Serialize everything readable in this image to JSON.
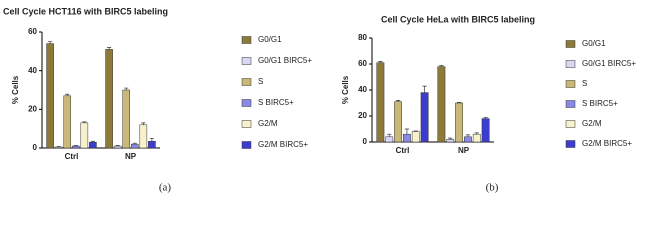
{
  "chart_data": [
    {
      "type": "bar",
      "title": "Cell Cycle HCT116 with BIRC5 labeling",
      "y_label": "% Cells",
      "panel_label": "(a)",
      "categories": [
        "Ctrl",
        "NP"
      ],
      "ylim": [
        0,
        60
      ],
      "yticks": [
        0,
        20,
        40,
        60
      ],
      "series": [
        {
          "name": "G0/G1",
          "color": "#8c7a3a",
          "values": [
            54,
            51
          ],
          "errors": [
            1,
            1
          ]
        },
        {
          "name": "G0/G1 BIRC5+",
          "color": "#d6d6f5",
          "values": [
            0.5,
            1
          ],
          "errors": [
            0.3,
            0.3
          ]
        },
        {
          "name": "S",
          "color": "#c9b877",
          "values": [
            27,
            30
          ],
          "errors": [
            0.8,
            1
          ]
        },
        {
          "name": "S BIRC5+",
          "color": "#8a8ae6",
          "values": [
            1,
            2
          ],
          "errors": [
            0.3,
            0.5
          ]
        },
        {
          "name": "G2/M",
          "color": "#f7f2cc",
          "values": [
            13,
            12
          ],
          "errors": [
            0.5,
            1
          ]
        },
        {
          "name": "G2/M BIRC5+",
          "color": "#3c3ccf",
          "values": [
            3,
            3.5
          ],
          "errors": [
            0.5,
            1.5
          ]
        }
      ]
    },
    {
      "type": "bar",
      "title": "Cell Cycle HeLa with BIRC5 labeling",
      "y_label": "% Cells",
      "panel_label": "(b)",
      "categories": [
        "Ctrl",
        "NP"
      ],
      "ylim": [
        0,
        80
      ],
      "yticks": [
        0,
        20,
        40,
        60,
        80
      ],
      "series": [
        {
          "name": "G0/G1",
          "color": "#8c7a3a",
          "values": [
            61,
            58
          ],
          "errors": [
            1,
            1
          ]
        },
        {
          "name": "G0/G1 BIRC5+",
          "color": "#d6d6f5",
          "values": [
            4,
            2
          ],
          "errors": [
            2,
            1
          ]
        },
        {
          "name": "S",
          "color": "#c9b877",
          "values": [
            31,
            30
          ],
          "errors": [
            1,
            0.5
          ]
        },
        {
          "name": "S BIRC5+",
          "color": "#8a8ae6",
          "values": [
            6,
            4
          ],
          "errors": [
            4,
            1.5
          ]
        },
        {
          "name": "G2/M",
          "color": "#f7f2cc",
          "values": [
            8,
            6
          ],
          "errors": [
            0.5,
            1
          ]
        },
        {
          "name": "G2/M BIRC5+",
          "color": "#3c3ccf",
          "values": [
            38,
            18
          ],
          "errors": [
            5,
            1
          ]
        }
      ]
    }
  ]
}
